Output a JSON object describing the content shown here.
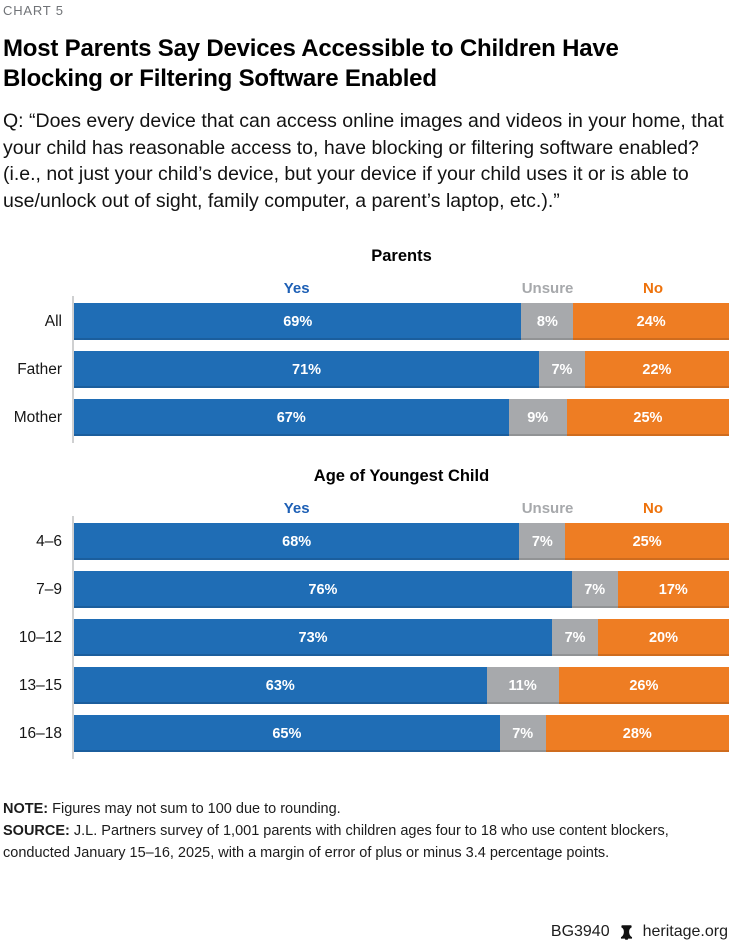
{
  "page": {
    "kicker": "CHART 5",
    "title": "Most Parents Say Devices Accessible to Children Have Blocking or Filtering Software Enabled",
    "question": "Q: “Does every device that can access online images and videos in your home, that your child has reasonable access to, have blocking or filtering software enabled? (i.e., not just your child’s device, but your device if your child uses it or is able to use/unlock out of sight, family computer, a parent’s laptop, etc.).”",
    "note_label": "NOTE:",
    "note_text": "Figures may not sum to 100 due to rounding.",
    "source_label": "SOURCE:",
    "source_text": "J.L. Partners survey of 1,001 parents with children ages four to 18 who use content blockers, conducted January 15–16, 2025, with a margin of error of plus or minus 3.4 percentage points.",
    "footer": {
      "report_id": "BG3940",
      "site": "heritage.org",
      "logo_icon": "heritage-bell-icon"
    }
  },
  "colors": {
    "yes": "#1f6db5",
    "unsure": "#a7a9ac",
    "no": "#ee7d23",
    "yes_text": "#1d5fb5",
    "no_text": "#ee720b",
    "axis_line": "#cfd0d1"
  },
  "chart_data": [
    {
      "type": "bar",
      "orientation": "horizontal",
      "stacked": true,
      "title": "Parents",
      "legend": [
        "Yes",
        "Unsure",
        "No"
      ],
      "legend_position": "top",
      "categories": [
        "All",
        "Father",
        "Mother"
      ],
      "series": [
        {
          "name": "Yes",
          "values": [
            69,
            71,
            67
          ]
        },
        {
          "name": "Unsure",
          "values": [
            8,
            7,
            9
          ]
        },
        {
          "name": "No",
          "values": [
            24,
            22,
            25
          ]
        }
      ],
      "unit": "%",
      "xlim": [
        0,
        100
      ],
      "grid": false,
      "value_labels": "inside-white-bold"
    },
    {
      "type": "bar",
      "orientation": "horizontal",
      "stacked": true,
      "title": "Age of Youngest Child",
      "legend": [
        "Yes",
        "Unsure",
        "No"
      ],
      "legend_position": "top",
      "categories": [
        "4–6",
        "7–9",
        "10–12",
        "13–15",
        "16–18"
      ],
      "series": [
        {
          "name": "Yes",
          "values": [
            68,
            76,
            73,
            63,
            65
          ]
        },
        {
          "name": "Unsure",
          "values": [
            7,
            7,
            7,
            11,
            7
          ]
        },
        {
          "name": "No",
          "values": [
            25,
            17,
            20,
            26,
            28
          ]
        }
      ],
      "unit": "%",
      "xlim": [
        0,
        100
      ],
      "grid": false,
      "value_labels": "inside-white-bold"
    }
  ]
}
